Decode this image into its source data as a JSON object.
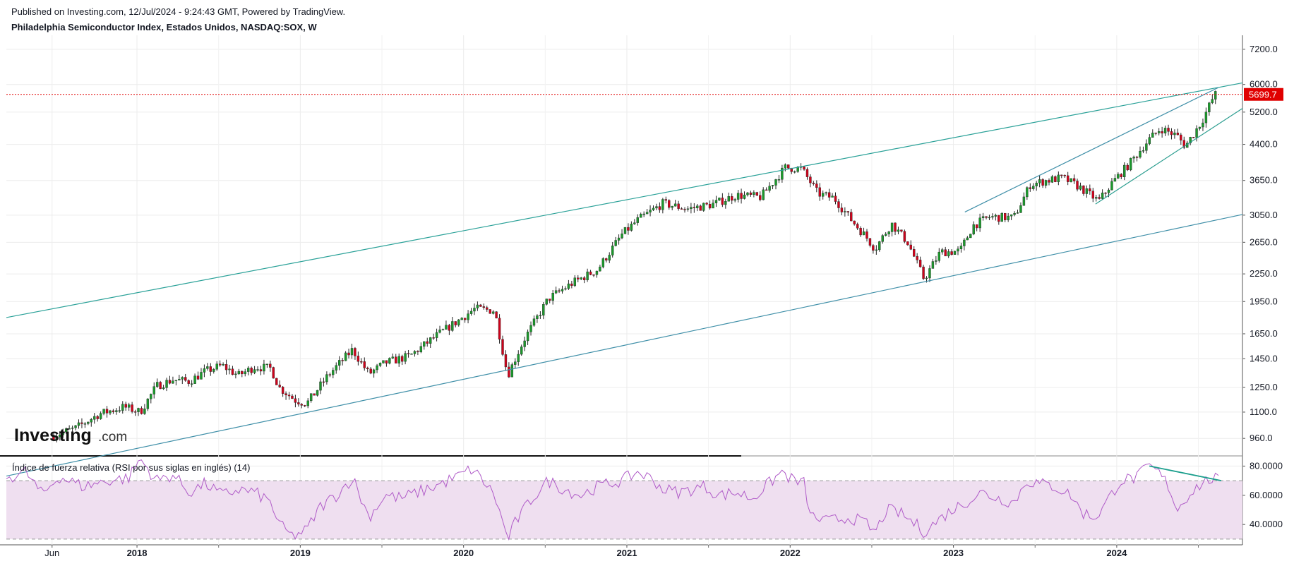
{
  "header": {
    "published": "Published on Investing.com, 12/Jul/2024 - 9:24:43 GMT, Powered by TradingView.",
    "title": "Philadelphia Semiconductor Index, Estados Unidos, NASDAQ:SOX, W"
  },
  "logo": {
    "main": "Investing",
    "suffix": ".com"
  },
  "colors": {
    "up": "#1b9a2c",
    "down": "#d0021b",
    "channel_upper": "#2aa198",
    "channel_lower": "#3f8fa8",
    "wedge": "#2a9d8f",
    "last_price_line": "#e00000",
    "rsi_line": "#b05bc8",
    "rsi_band": "#efdff0",
    "rsi_trend": "#1a9e8c"
  },
  "chart_data": [
    {
      "type": "candlestick",
      "title": "Philadelphia Semiconductor Index, Estados Unidos, NASDAQ:SOX, W",
      "scale": "log",
      "y_ticks": [
        "960.0",
        "1100.0",
        "1250.0",
        "1450.0",
        "1650.0",
        "1950.0",
        "2250.0",
        "2650.0",
        "3050.0",
        "3650.0",
        "4400.0",
        "5200.0",
        "6000.0",
        "7200.0"
      ],
      "x_ticks": [
        {
          "label": "Jun",
          "bold": false
        },
        {
          "label": "2018",
          "bold": true
        },
        {
          "label": "2019",
          "bold": true
        },
        {
          "label": "2020",
          "bold": true
        },
        {
          "label": "2021",
          "bold": true
        },
        {
          "label": "2022",
          "bold": true
        },
        {
          "label": "2023",
          "bold": true
        },
        {
          "label": "2024",
          "bold": true
        }
      ],
      "last_price": "5699.7",
      "ylim": [
        880,
        7600
      ],
      "weekly_closes_approx": [
        [
          2017.4,
          970
        ],
        [
          2017.55,
          1010
        ],
        [
          2017.7,
          1090
        ],
        [
          2017.85,
          1130
        ],
        [
          2017.95,
          1100
        ],
        [
          2018.05,
          1260
        ],
        [
          2018.15,
          1300
        ],
        [
          2018.25,
          1290
        ],
        [
          2018.35,
          1360
        ],
        [
          2018.45,
          1400
        ],
        [
          2018.55,
          1330
        ],
        [
          2018.65,
          1390
        ],
        [
          2018.75,
          1380
        ],
        [
          2018.8,
          1250
        ],
        [
          2018.9,
          1170
        ],
        [
          2018.97,
          1150
        ],
        [
          2019.1,
          1330
        ],
        [
          2019.25,
          1520
        ],
        [
          2019.35,
          1340
        ],
        [
          2019.45,
          1420
        ],
        [
          2019.6,
          1470
        ],
        [
          2019.75,
          1620
        ],
        [
          2019.9,
          1770
        ],
        [
          2020.0,
          1880
        ],
        [
          2020.12,
          1860
        ],
        [
          2020.2,
          1330
        ],
        [
          2020.3,
          1600
        ],
        [
          2020.45,
          1980
        ],
        [
          2020.6,
          2150
        ],
        [
          2020.75,
          2300
        ],
        [
          2020.9,
          2760
        ],
        [
          2021.0,
          2980
        ],
        [
          2021.15,
          3240
        ],
        [
          2021.3,
          3150
        ],
        [
          2021.45,
          3220
        ],
        [
          2021.6,
          3380
        ],
        [
          2021.75,
          3350
        ],
        [
          2021.9,
          3900
        ],
        [
          2022.0,
          3880
        ],
        [
          2022.1,
          3410
        ],
        [
          2022.2,
          3330
        ],
        [
          2022.3,
          2990
        ],
        [
          2022.4,
          2710
        ],
        [
          2022.45,
          2560
        ],
        [
          2022.55,
          2920
        ],
        [
          2022.65,
          2650
        ],
        [
          2022.75,
          2190
        ],
        [
          2022.85,
          2520
        ],
        [
          2022.97,
          2530
        ],
        [
          2023.05,
          2890
        ],
        [
          2023.15,
          3020
        ],
        [
          2023.3,
          3010
        ],
        [
          2023.4,
          3570
        ],
        [
          2023.5,
          3650
        ],
        [
          2023.6,
          3700
        ],
        [
          2023.7,
          3530
        ],
        [
          2023.82,
          3280
        ],
        [
          2023.9,
          3600
        ],
        [
          2024.0,
          3950
        ],
        [
          2024.12,
          4480
        ],
        [
          2024.2,
          4780
        ],
        [
          2024.3,
          4600
        ],
        [
          2024.35,
          4360
        ],
        [
          2024.45,
          4950
        ],
        [
          2024.52,
          5600
        ],
        [
          2024.53,
          5699.7
        ]
      ],
      "trendlines": [
        {
          "name": "",
          "from": [
            2017.13,
            1795
          ],
          "to": [
            2024.7,
            6050
          ]
        },
        {
          "name": "",
          "from": [
            2017.13,
            790
          ],
          "to": [
            2024.7,
            3060
          ]
        },
        {
          "name": "",
          "from": [
            2023.0,
            3100
          ],
          "to": [
            2024.55,
            5900
          ]
        },
        {
          "name": "",
          "from": [
            2023.8,
            3230
          ],
          "to": [
            2024.7,
            5300
          ]
        }
      ]
    },
    {
      "type": "line",
      "title": "Índice de fuerza relativa (RSI por sus siglas en inglés) (14)",
      "y_ticks": [
        "40.0000",
        "60.0000",
        "80.0000"
      ],
      "ylim": [
        28,
        86
      ],
      "band": [
        30,
        70
      ],
      "trendline": {
        "from": [
          2024.13,
          80
        ],
        "to": [
          2024.57,
          70
        ]
      },
      "values_approx": [
        [
          2017.13,
          72
        ],
        [
          2017.25,
          76
        ],
        [
          2017.35,
          60
        ],
        [
          2017.45,
          73
        ],
        [
          2017.6,
          66
        ],
        [
          2017.75,
          70
        ],
        [
          2017.88,
          72
        ],
        [
          2017.95,
          85
        ],
        [
          2018.05,
          70
        ],
        [
          2018.15,
          74
        ],
        [
          2018.25,
          62
        ],
        [
          2018.35,
          68
        ],
        [
          2018.45,
          60
        ],
        [
          2018.55,
          64
        ],
        [
          2018.65,
          62
        ],
        [
          2018.75,
          55
        ],
        [
          2018.8,
          40
        ],
        [
          2018.88,
          32
        ],
        [
          2018.97,
          36
        ],
        [
          2019.05,
          52
        ],
        [
          2019.15,
          60
        ],
        [
          2019.25,
          72
        ],
        [
          2019.35,
          45
        ],
        [
          2019.45,
          60
        ],
        [
          2019.55,
          58
        ],
        [
          2019.65,
          62
        ],
        [
          2019.75,
          66
        ],
        [
          2019.88,
          72
        ],
        [
          2019.98,
          78
        ],
        [
          2020.05,
          70
        ],
        [
          2020.12,
          60
        ],
        [
          2020.2,
          30
        ],
        [
          2020.25,
          42
        ],
        [
          2020.35,
          58
        ],
        [
          2020.45,
          70
        ],
        [
          2020.55,
          64
        ],
        [
          2020.65,
          60
        ],
        [
          2020.75,
          66
        ],
        [
          2020.9,
          70
        ],
        [
          2021.0,
          76
        ],
        [
          2021.1,
          70
        ],
        [
          2021.15,
          64
        ],
        [
          2021.25,
          62
        ],
        [
          2021.4,
          66
        ],
        [
          2021.5,
          60
        ],
        [
          2021.6,
          62
        ],
        [
          2021.7,
          58
        ],
        [
          2021.8,
          68
        ],
        [
          2021.88,
          76
        ],
        [
          2021.95,
          70
        ],
        [
          2022.02,
          68
        ],
        [
          2022.05,
          46
        ],
        [
          2022.15,
          42
        ],
        [
          2022.3,
          45
        ],
        [
          2022.4,
          40
        ],
        [
          2022.45,
          34
        ],
        [
          2022.52,
          50
        ],
        [
          2022.6,
          48
        ],
        [
          2022.7,
          40
        ],
        [
          2022.75,
          35
        ],
        [
          2022.85,
          44
        ],
        [
          2022.92,
          50
        ],
        [
          2023.0,
          55
        ],
        [
          2023.1,
          62
        ],
        [
          2023.2,
          58
        ],
        [
          2023.3,
          55
        ],
        [
          2023.38,
          70
        ],
        [
          2023.45,
          68
        ],
        [
          2023.55,
          66
        ],
        [
          2023.65,
          60
        ],
        [
          2023.72,
          48
        ],
        [
          2023.8,
          45
        ],
        [
          2023.85,
          52
        ],
        [
          2023.95,
          70
        ],
        [
          2024.05,
          72
        ],
        [
          2024.13,
          80
        ],
        [
          2024.2,
          74
        ],
        [
          2024.25,
          66
        ],
        [
          2024.3,
          50
        ],
        [
          2024.38,
          62
        ],
        [
          2024.45,
          68
        ],
        [
          2024.52,
          72
        ],
        [
          2024.55,
          70
        ]
      ]
    }
  ]
}
